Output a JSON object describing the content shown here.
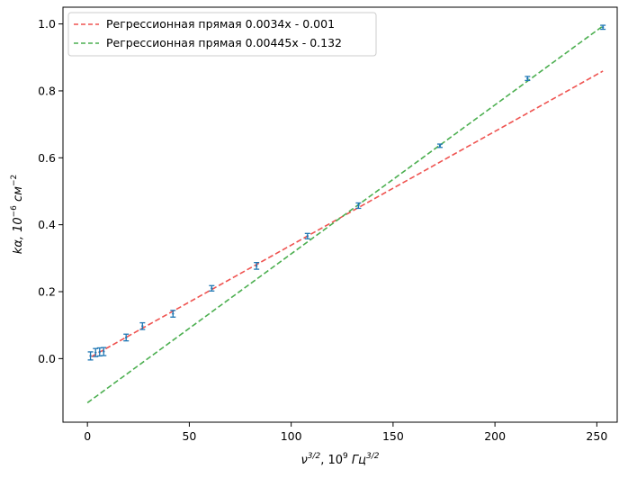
{
  "chart_data": {
    "type": "scatter",
    "xlabel_base": "ν",
    "xlabel_sup": "3/2",
    "xlabel_mid": ",  10",
    "xlabel_sup2": "9",
    "xlabel_unit": " Гц",
    "xlabel_sup3": "3/2",
    "ylabel_base": "kα,  10",
    "ylabel_sup": "−6",
    "ylabel_unit": " см",
    "ylabel_sup2": "−2",
    "xlim": [
      -12,
      260
    ],
    "ylim": [
      -0.19,
      1.05
    ],
    "xticks": [
      0,
      50,
      100,
      150,
      200,
      250
    ],
    "yticks": [
      0.0,
      0.2,
      0.4,
      0.6,
      0.8,
      1.0
    ],
    "xtick_labels": [
      "0",
      "50",
      "100",
      "150",
      "200",
      "250"
    ],
    "ytick_labels": [
      "0.0",
      "0.2",
      "0.4",
      "0.6",
      "0.8",
      "1.0"
    ],
    "grid": false,
    "legend_position": "top-left",
    "points": [
      {
        "x": 1.5,
        "y": 0.008,
        "err": 0.012
      },
      {
        "x": 4,
        "y": 0.018,
        "err": 0.012
      },
      {
        "x": 6,
        "y": 0.02,
        "err": 0.012
      },
      {
        "x": 8,
        "y": 0.021,
        "err": 0.012
      },
      {
        "x": 19,
        "y": 0.063,
        "err": 0.01
      },
      {
        "x": 27,
        "y": 0.097,
        "err": 0.01
      },
      {
        "x": 42,
        "y": 0.134,
        "err": 0.01
      },
      {
        "x": 61,
        "y": 0.21,
        "err": 0.008
      },
      {
        "x": 83,
        "y": 0.277,
        "err": 0.01
      },
      {
        "x": 108,
        "y": 0.366,
        "err": 0.008
      },
      {
        "x": 133,
        "y": 0.457,
        "err": 0.008
      },
      {
        "x": 173,
        "y": 0.636,
        "err": 0.005
      },
      {
        "x": 216,
        "y": 0.837,
        "err": 0.006
      },
      {
        "x": 253,
        "y": 0.99,
        "err": 0.006
      }
    ],
    "series": [
      {
        "name": "Регрессионная прямая 0.0034x - 0.001",
        "slope": 0.0034,
        "intercept": -0.001,
        "x_range": [
          2,
          253
        ],
        "color": "#ef5350"
      },
      {
        "name": "Регрессионная прямая 0.00445x - 0.132",
        "slope": 0.00445,
        "intercept": -0.132,
        "x_range": [
          0,
          253
        ],
        "color": "#4caf50"
      }
    ],
    "point_color": "#1f77b4"
  }
}
